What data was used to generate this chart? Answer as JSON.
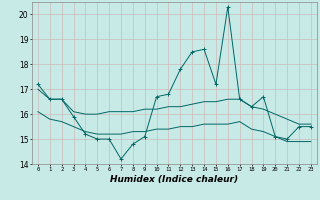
{
  "xlabel": "Humidex (Indice chaleur)",
  "hours": [
    0,
    1,
    2,
    3,
    4,
    5,
    6,
    7,
    8,
    9,
    10,
    11,
    12,
    13,
    14,
    15,
    16,
    17,
    18,
    19,
    20,
    21,
    22,
    23
  ],
  "main_line": [
    17.2,
    16.6,
    16.6,
    15.9,
    15.2,
    15.0,
    15.0,
    14.2,
    14.8,
    15.1,
    16.7,
    16.8,
    17.8,
    18.5,
    18.6,
    17.2,
    20.3,
    16.6,
    16.3,
    16.7,
    15.1,
    15.0,
    15.5,
    15.5
  ],
  "upper_line": [
    17.0,
    16.6,
    16.6,
    16.1,
    16.0,
    16.0,
    16.1,
    16.1,
    16.1,
    16.2,
    16.2,
    16.3,
    16.3,
    16.4,
    16.5,
    16.5,
    16.6,
    16.6,
    16.3,
    16.2,
    16.0,
    15.8,
    15.6,
    15.6
  ],
  "lower_line": [
    16.1,
    15.8,
    15.7,
    15.5,
    15.3,
    15.2,
    15.2,
    15.2,
    15.3,
    15.3,
    15.4,
    15.4,
    15.5,
    15.5,
    15.6,
    15.6,
    15.6,
    15.7,
    15.4,
    15.3,
    15.1,
    14.9,
    14.9,
    14.9
  ],
  "bg_color": "#c8eae6",
  "grid_color": "#ccbbbb",
  "line_color": "#006666",
  "ylim": [
    14,
    20.5
  ],
  "yticks": [
    14,
    15,
    16,
    17,
    18,
    19,
    20
  ],
  "ylabel_fontsize": 5.5,
  "xlabel_fontsize": 6.5
}
